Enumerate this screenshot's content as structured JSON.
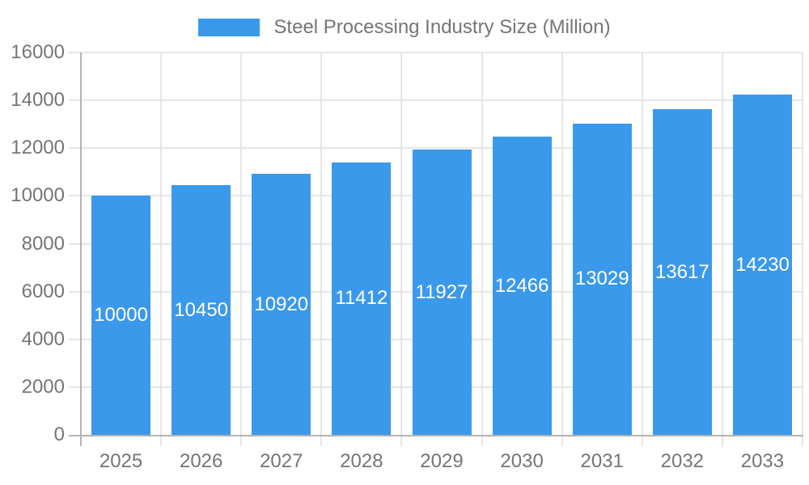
{
  "chart_data": {
    "type": "bar",
    "title": "Steel Processing Industry Size (Million)",
    "categories": [
      "2025",
      "2026",
      "2027",
      "2028",
      "2029",
      "2030",
      "2031",
      "2032",
      "2033"
    ],
    "values": [
      10000,
      10450,
      10920,
      11412,
      11927,
      12466,
      13029,
      13617,
      14230
    ],
    "xlabel": "",
    "ylabel": "",
    "ylim": [
      0,
      16000
    ],
    "yticks": [
      0,
      2000,
      4000,
      6000,
      8000,
      10000,
      12000,
      14000,
      16000
    ],
    "grid": true,
    "legend_position": "top",
    "value_label_position": "inside-center"
  },
  "colors": {
    "bar": "#3b99ec",
    "bar_label": "#ffffff",
    "axis": "#b3b3b3",
    "grid": "#e6e6e6",
    "text": "#757575",
    "background": "#ffffff"
  }
}
